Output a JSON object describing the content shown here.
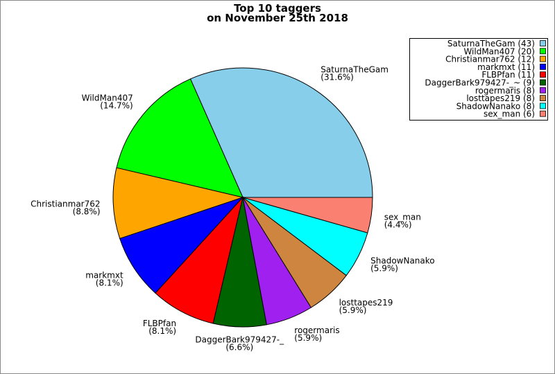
{
  "chart_data": {
    "type": "pie",
    "title": "Top 10 taggers",
    "subtitle": "on November 25th 2018",
    "categories": [
      "SaturnaTheGam",
      "WildMan407",
      "Christianmar762",
      "markmxt",
      "FLBPfan",
      "DaggerBark979427-_",
      "rogermaris",
      "losttapes219",
      "ShadowNanako",
      "sex_man"
    ],
    "values": [
      43,
      20,
      12,
      11,
      11,
      9,
      8,
      8,
      8,
      6
    ],
    "percentages": [
      31.6,
      14.7,
      8.8,
      8.1,
      8.1,
      6.6,
      5.9,
      5.9,
      5.9,
      4.4
    ],
    "percent_labels": [
      "(31.6%)",
      "(14.7%)",
      "(8.8%)",
      "(8.1%)",
      "(8.1%)",
      "(6.6%)",
      "(5.9%)",
      "(5.9%)",
      "(5.9%)",
      "(4.4%)"
    ],
    "legend_labels": [
      "SaturnaTheGam (43)",
      "WildMan407 (20)",
      "Christianmar762 (12)",
      "markmxt (11)",
      "FLBPfan (11)",
      "DaggerBark979427-_~ (9)",
      "rogermaris (8)",
      "losttapes219 (8)",
      "ShadowNanako (8)",
      "sex_man (6)"
    ],
    "colors": [
      "#87ceeb",
      "#00ff00",
      "#ffa500",
      "#0000ff",
      "#ff0000",
      "#006400",
      "#a020f0",
      "#cd853f",
      "#00ffff",
      "#fa8072"
    ],
    "legend": "upper right"
  }
}
